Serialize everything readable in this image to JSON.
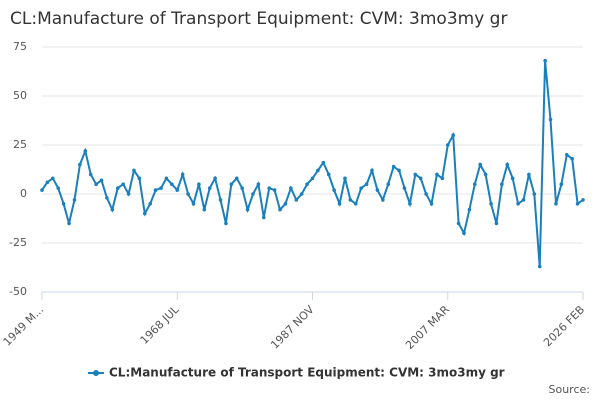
{
  "chart_data": {
    "type": "line",
    "title": "CL:Manufacture of Transport Equipment: CVM: 3mo3my gr",
    "source": "Source:",
    "categories": [
      "1949 M...",
      null,
      null,
      null,
      null,
      null,
      null,
      null,
      null,
      null,
      null,
      null,
      null,
      null,
      null,
      null,
      null,
      null,
      null,
      null,
      null,
      null,
      null,
      null,
      null,
      "1968 JUL",
      null,
      null,
      null,
      null,
      null,
      null,
      null,
      null,
      null,
      null,
      null,
      null,
      null,
      null,
      null,
      null,
      null,
      null,
      null,
      null,
      null,
      null,
      null,
      null,
      "1987 NOV",
      null,
      null,
      null,
      null,
      null,
      null,
      null,
      null,
      null,
      null,
      null,
      null,
      null,
      null,
      null,
      null,
      null,
      null,
      null,
      null,
      null,
      null,
      null,
      null,
      "2007 MAR",
      null,
      null,
      null,
      null,
      null,
      null,
      null,
      null,
      null,
      null,
      null,
      null,
      null,
      null,
      null,
      null,
      null,
      null,
      null,
      null,
      null,
      null,
      null,
      null,
      "2026 FEB"
    ],
    "series": [
      {
        "name": "CL:Manufacture of Transport Equipment: CVM: 3mo3my gr",
        "color": "#1a7fbd",
        "values": [
          2,
          6,
          8,
          3,
          -5,
          -15,
          -3,
          15,
          22,
          10,
          5,
          7,
          -2,
          -8,
          3,
          5,
          0,
          12,
          8,
          -10,
          -5,
          2,
          3,
          8,
          5,
          2,
          10,
          0,
          -5,
          5,
          -8,
          3,
          8,
          -3,
          -15,
          5,
          8,
          3,
          -8,
          0,
          5,
          -12,
          3,
          2,
          -8,
          -5,
          3,
          -3,
          0,
          5,
          8,
          12,
          16,
          10,
          2,
          -5,
          8,
          -3,
          -5,
          3,
          5,
          12,
          2,
          -3,
          5,
          14,
          12,
          3,
          -5,
          10,
          8,
          0,
          -5,
          10,
          8,
          25,
          30,
          -15,
          -20,
          -8,
          5,
          15,
          10,
          -5,
          -15,
          5,
          15,
          8,
          -5,
          -3,
          10,
          0,
          -37,
          68,
          38,
          -5,
          5,
          20,
          18,
          -5,
          -3
        ]
      }
    ],
    "ylim": [
      -50,
      75
    ],
    "yticks": [
      -50,
      -25,
      0,
      25,
      50,
      75
    ],
    "grid": true
  }
}
